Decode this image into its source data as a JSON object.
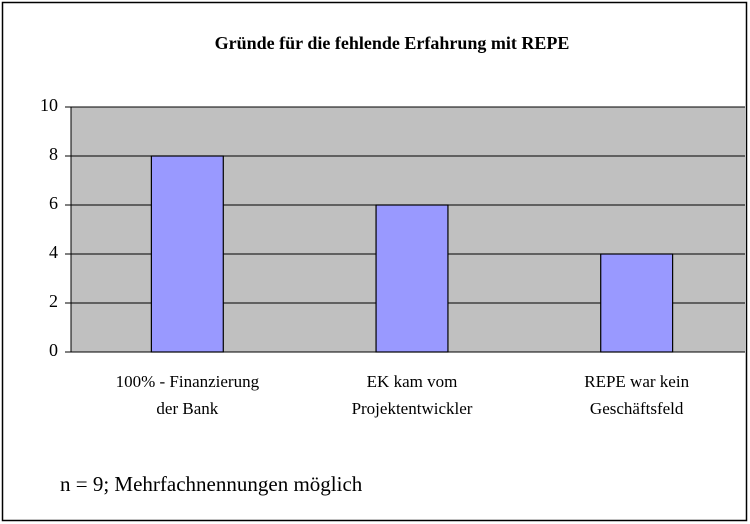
{
  "chart_data": {
    "type": "bar",
    "title": "Gründe für die fehlende Erfahrung mit REPE",
    "categories": [
      [
        "100% - Finanzierung",
        "der Bank"
      ],
      [
        "EK kam vom",
        "Projektentwickler"
      ],
      [
        "REPE war kein",
        "Geschäftsfeld"
      ]
    ],
    "values": [
      8,
      6,
      4
    ],
    "color": "#9999ff",
    "ylim": [
      0,
      10
    ],
    "yticks": [
      0,
      2,
      4,
      6,
      8,
      10
    ],
    "grid": true,
    "annotation": "n = 9; Mehrfachnennungen möglich"
  }
}
